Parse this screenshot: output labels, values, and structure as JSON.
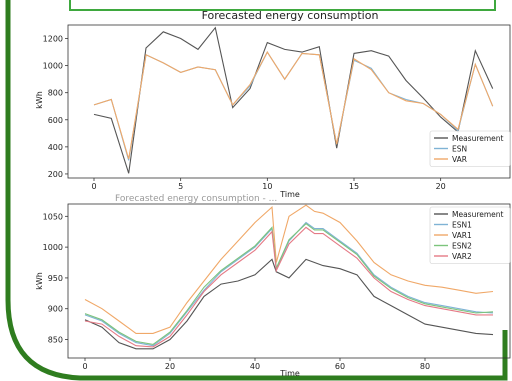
{
  "colors": {
    "frame_green": "#2f7d1f",
    "measurement": "#555555",
    "esn": "#7fb3d5",
    "var": "#f0a868",
    "esn2": "#7cc47c",
    "var2": "#e57a86"
  },
  "chart_data": [
    {
      "type": "line",
      "title": "Forecasted energy consumption",
      "xlabel": "Time",
      "ylabel": "kWh",
      "xlim": [
        -1.5,
        24
      ],
      "ylim": [
        170,
        1300
      ],
      "xticks": [
        0,
        5,
        10,
        15,
        20
      ],
      "yticks": [
        200,
        400,
        600,
        800,
        1000,
        1200
      ],
      "grid": false,
      "legend_position": "lower-right",
      "x": [
        0,
        1,
        2,
        3,
        4,
        5,
        6,
        7,
        8,
        9,
        10,
        11,
        12,
        13,
        14,
        15,
        16,
        17,
        18,
        19,
        20,
        21,
        22,
        23
      ],
      "series": [
        {
          "name": "Measurement",
          "color": "#555555",
          "values": [
            640,
            610,
            205,
            1130,
            1250,
            1200,
            1120,
            1280,
            690,
            830,
            1170,
            1120,
            1100,
            1140,
            390,
            1090,
            1110,
            1070,
            890,
            760,
            620,
            510,
            1110,
            830
          ]
        },
        {
          "name": "ESN",
          "color": "#7fb3d5",
          "values": [
            710,
            750,
            300,
            1080,
            1020,
            950,
            990,
            970,
            710,
            850,
            1100,
            900,
            1090,
            1080,
            420,
            1040,
            980,
            800,
            750,
            720,
            640,
            520,
            1010,
            700
          ]
        },
        {
          "name": "VAR",
          "color": "#f0a868",
          "values": [
            710,
            750,
            310,
            1080,
            1020,
            950,
            990,
            970,
            710,
            860,
            1100,
            900,
            1090,
            1080,
            420,
            1050,
            970,
            800,
            740,
            720,
            640,
            530,
            1010,
            700
          ]
        }
      ]
    },
    {
      "type": "line",
      "title": "",
      "xlabel": "Time",
      "ylabel": "kWh",
      "xlim": [
        -4,
        100
      ],
      "ylim": [
        820,
        1070
      ],
      "xticks": [
        0,
        20,
        40,
        60,
        80
      ],
      "yticks": [
        850,
        900,
        950,
        1000,
        1050
      ],
      "grid": false,
      "legend_position": "top-right",
      "x": [
        0,
        4,
        8,
        12,
        16,
        20,
        24,
        28,
        32,
        36,
        40,
        44,
        45,
        48,
        52,
        54,
        56,
        60,
        64,
        68,
        72,
        76,
        80,
        84,
        88,
        92,
        96
      ],
      "series": [
        {
          "name": "Measurement",
          "color": "#555555",
          "values": [
            882,
            870,
            845,
            835,
            835,
            850,
            880,
            920,
            940,
            945,
            955,
            980,
            960,
            950,
            980,
            975,
            970,
            965,
            955,
            920,
            905,
            890,
            875,
            870,
            865,
            860,
            858
          ]
        },
        {
          "name": "ESN1",
          "color": "#7fb3d5",
          "values": [
            890,
            880,
            860,
            845,
            840,
            860,
            895,
            930,
            960,
            980,
            1000,
            1030,
            965,
            1010,
            1040,
            1030,
            1030,
            1010,
            990,
            955,
            935,
            920,
            910,
            905,
            900,
            895,
            893
          ]
        },
        {
          "name": "VAR1",
          "color": "#f0a868",
          "values": [
            915,
            900,
            880,
            860,
            860,
            870,
            910,
            945,
            980,
            1010,
            1040,
            1065,
            975,
            1050,
            1068,
            1058,
            1055,
            1040,
            1010,
            975,
            955,
            945,
            938,
            935,
            930,
            925,
            928
          ]
        },
        {
          "name": "ESN2",
          "color": "#7cc47c",
          "values": [
            892,
            882,
            862,
            847,
            842,
            862,
            897,
            935,
            962,
            982,
            1002,
            1032,
            966,
            1012,
            1038,
            1028,
            1028,
            1008,
            988,
            953,
            933,
            918,
            908,
            903,
            898,
            893,
            895
          ]
        },
        {
          "name": "VAR2",
          "color": "#e57a86",
          "values": [
            880,
            875,
            855,
            840,
            838,
            855,
            890,
            928,
            955,
            975,
            995,
            1025,
            962,
            1005,
            1032,
            1022,
            1022,
            1002,
            982,
            950,
            928,
            915,
            905,
            900,
            895,
            890,
            890
          ]
        }
      ],
      "overlay_text": "Forecasted energy consumption - ..."
    }
  ]
}
